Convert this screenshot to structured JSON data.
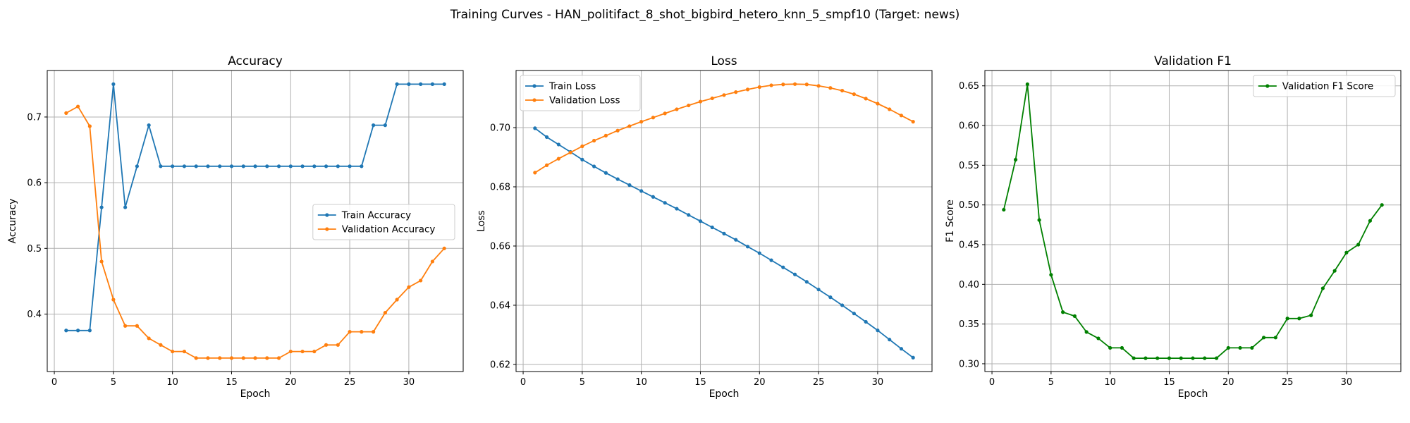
{
  "suptitle": "Training Curves - HAN_politifact_8_shot_bigbird_hetero_knn_5_smpf10 (Target: news)",
  "colors": {
    "train": "#1f77b4",
    "validation": "#ff7f0e",
    "f1": "#008000"
  },
  "chart_data": [
    {
      "type": "line",
      "title": "Accuracy",
      "xlabel": "Epoch",
      "ylabel": "Accuracy",
      "xlim": [
        -0.6,
        34.6
      ],
      "ylim": [
        0.3125,
        0.7708
      ],
      "xticks": [
        0,
        5,
        10,
        15,
        20,
        25,
        30
      ],
      "yticks": [
        0.4,
        0.5,
        0.6,
        0.7
      ],
      "grid": true,
      "legend_position": "center-right",
      "x": [
        1,
        2,
        3,
        4,
        5,
        6,
        7,
        8,
        9,
        10,
        11,
        12,
        13,
        14,
        15,
        16,
        17,
        18,
        19,
        20,
        21,
        22,
        23,
        24,
        25,
        26,
        27,
        28,
        29,
        30,
        31,
        32,
        33
      ],
      "series": [
        {
          "name": "Train Accuracy",
          "color": "#1f77b4",
          "values": [
            0.375,
            0.375,
            0.375,
            0.5625,
            0.75,
            0.5625,
            0.625,
            0.6875,
            0.625,
            0.625,
            0.625,
            0.625,
            0.625,
            0.625,
            0.625,
            0.625,
            0.625,
            0.625,
            0.625,
            0.625,
            0.625,
            0.625,
            0.625,
            0.625,
            0.625,
            0.625,
            0.6875,
            0.6875,
            0.75,
            0.75,
            0.75,
            0.75,
            0.75
          ]
        },
        {
          "name": "Validation Accuracy",
          "color": "#ff7f0e",
          "values": [
            0.706,
            0.716,
            0.686,
            0.48,
            0.422,
            0.382,
            0.382,
            0.363,
            0.353,
            0.343,
            0.343,
            0.333,
            0.333,
            0.333,
            0.333,
            0.333,
            0.333,
            0.333,
            0.333,
            0.343,
            0.343,
            0.343,
            0.353,
            0.353,
            0.373,
            0.373,
            0.373,
            0.402,
            0.422,
            0.441,
            0.451,
            0.48,
            0.5
          ]
        }
      ]
    },
    {
      "type": "line",
      "title": "Loss",
      "xlabel": "Epoch",
      "ylabel": "Loss",
      "xlim": [
        -0.6,
        34.6
      ],
      "ylim": [
        0.6176,
        0.7193
      ],
      "xticks": [
        0,
        5,
        10,
        15,
        20,
        25,
        30
      ],
      "yticks": [
        0.62,
        0.64,
        0.66,
        0.68,
        0.7
      ],
      "grid": true,
      "legend_position": "top-left",
      "x": [
        1,
        2,
        3,
        4,
        5,
        6,
        7,
        8,
        9,
        10,
        11,
        12,
        13,
        14,
        15,
        16,
        17,
        18,
        19,
        20,
        21,
        22,
        23,
        24,
        25,
        26,
        27,
        28,
        29,
        30,
        31,
        32,
        33
      ],
      "series": [
        {
          "name": "Train Loss",
          "color": "#1f77b4",
          "values": [
            0.6998,
            0.6968,
            0.6943,
            0.6918,
            0.6892,
            0.6869,
            0.6847,
            0.6826,
            0.6806,
            0.6786,
            0.6766,
            0.6746,
            0.6726,
            0.6705,
            0.6684,
            0.6663,
            0.6642,
            0.6621,
            0.6598,
            0.6576,
            0.6552,
            0.6528,
            0.6504,
            0.6479,
            0.6453,
            0.6427,
            0.64,
            0.6372,
            0.6344,
            0.6315,
            0.6284,
            0.6253,
            0.6223
          ]
        },
        {
          "name": "Validation Loss",
          "color": "#ff7f0e",
          "values": [
            0.6848,
            0.6873,
            0.6895,
            0.6916,
            0.6937,
            0.6956,
            0.6973,
            0.699,
            0.7005,
            0.702,
            0.7034,
            0.7048,
            0.7062,
            0.7075,
            0.7088,
            0.7099,
            0.711,
            0.712,
            0.7129,
            0.7137,
            0.7143,
            0.7146,
            0.7147,
            0.7146,
            0.7141,
            0.7134,
            0.7125,
            0.7113,
            0.7098,
            0.7081,
            0.7062,
            0.7041,
            0.702
          ]
        }
      ]
    },
    {
      "type": "line",
      "title": "Validation F1",
      "xlabel": "Epoch",
      "ylabel": "F1 Score",
      "xlim": [
        -0.6,
        34.6
      ],
      "ylim": [
        0.2902,
        0.6693
      ],
      "xticks": [
        0,
        5,
        10,
        15,
        20,
        25,
        30
      ],
      "yticks": [
        0.3,
        0.35,
        0.4,
        0.45,
        0.5,
        0.55,
        0.6,
        0.65
      ],
      "grid": true,
      "legend_position": "top-right",
      "x": [
        1,
        2,
        3,
        4,
        5,
        6,
        7,
        8,
        9,
        10,
        11,
        12,
        13,
        14,
        15,
        16,
        17,
        18,
        19,
        20,
        21,
        22,
        23,
        24,
        25,
        26,
        27,
        28,
        29,
        30,
        31,
        32,
        33
      ],
      "series": [
        {
          "name": "Validation F1 Score",
          "color": "#008000",
          "values": [
            0.494,
            0.557,
            0.652,
            0.481,
            0.412,
            0.365,
            0.36,
            0.34,
            0.332,
            0.32,
            0.32,
            0.307,
            0.307,
            0.307,
            0.307,
            0.307,
            0.307,
            0.307,
            0.307,
            0.32,
            0.32,
            0.32,
            0.333,
            0.333,
            0.357,
            0.357,
            0.361,
            0.395,
            0.417,
            0.44,
            0.45,
            0.48,
            0.5
          ]
        }
      ]
    }
  ]
}
